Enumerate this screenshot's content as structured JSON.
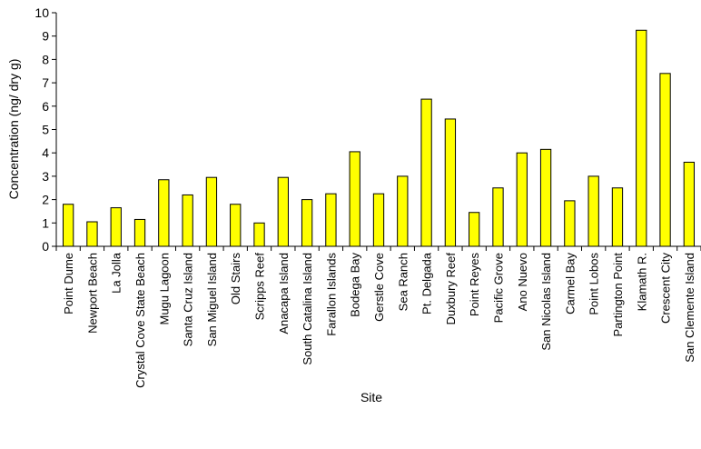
{
  "chart_data": {
    "type": "bar",
    "title": "",
    "xlabel": "Site",
    "ylabel": "Concentration (ng/ dry g)",
    "ylim": [
      0,
      10
    ],
    "yticks": [
      0,
      1,
      2,
      3,
      4,
      5,
      6,
      7,
      8,
      9,
      10
    ],
    "grid": false,
    "legend": "none",
    "bar_color": "#FFFF00",
    "bar_stroke": "#000000",
    "categories": [
      "Point Dume",
      "Newport Beach",
      "La Jolla",
      "Crystal Cove State Beach",
      "Mugu Lagoon",
      "Santa Cruz Island",
      "San Miguel Island",
      "Old Stairs",
      "Scripps Reef",
      "Anacapa Island",
      "South Catalina Island",
      "Farallon Islands",
      "Bodega Bay",
      "Gerstle Cove",
      "Sea Ranch",
      "Pt. Delgada",
      "Duxbury Reef",
      "Point Reyes",
      "Pacific Grove",
      "Ano Nuevo",
      "San Nicolas Island",
      "Carmel Bay",
      "Point Lobos",
      "Partington Point",
      "Klamath R.",
      "Crescent City",
      "San Clemente Island"
    ],
    "values": [
      1.8,
      1.05,
      1.65,
      1.15,
      2.85,
      2.2,
      2.95,
      1.8,
      1.0,
      2.95,
      2.0,
      2.25,
      4.05,
      2.25,
      3.0,
      6.3,
      5.45,
      1.45,
      2.5,
      4.0,
      4.15,
      1.95,
      3.0,
      2.5,
      9.25,
      7.4,
      3.6
    ]
  }
}
